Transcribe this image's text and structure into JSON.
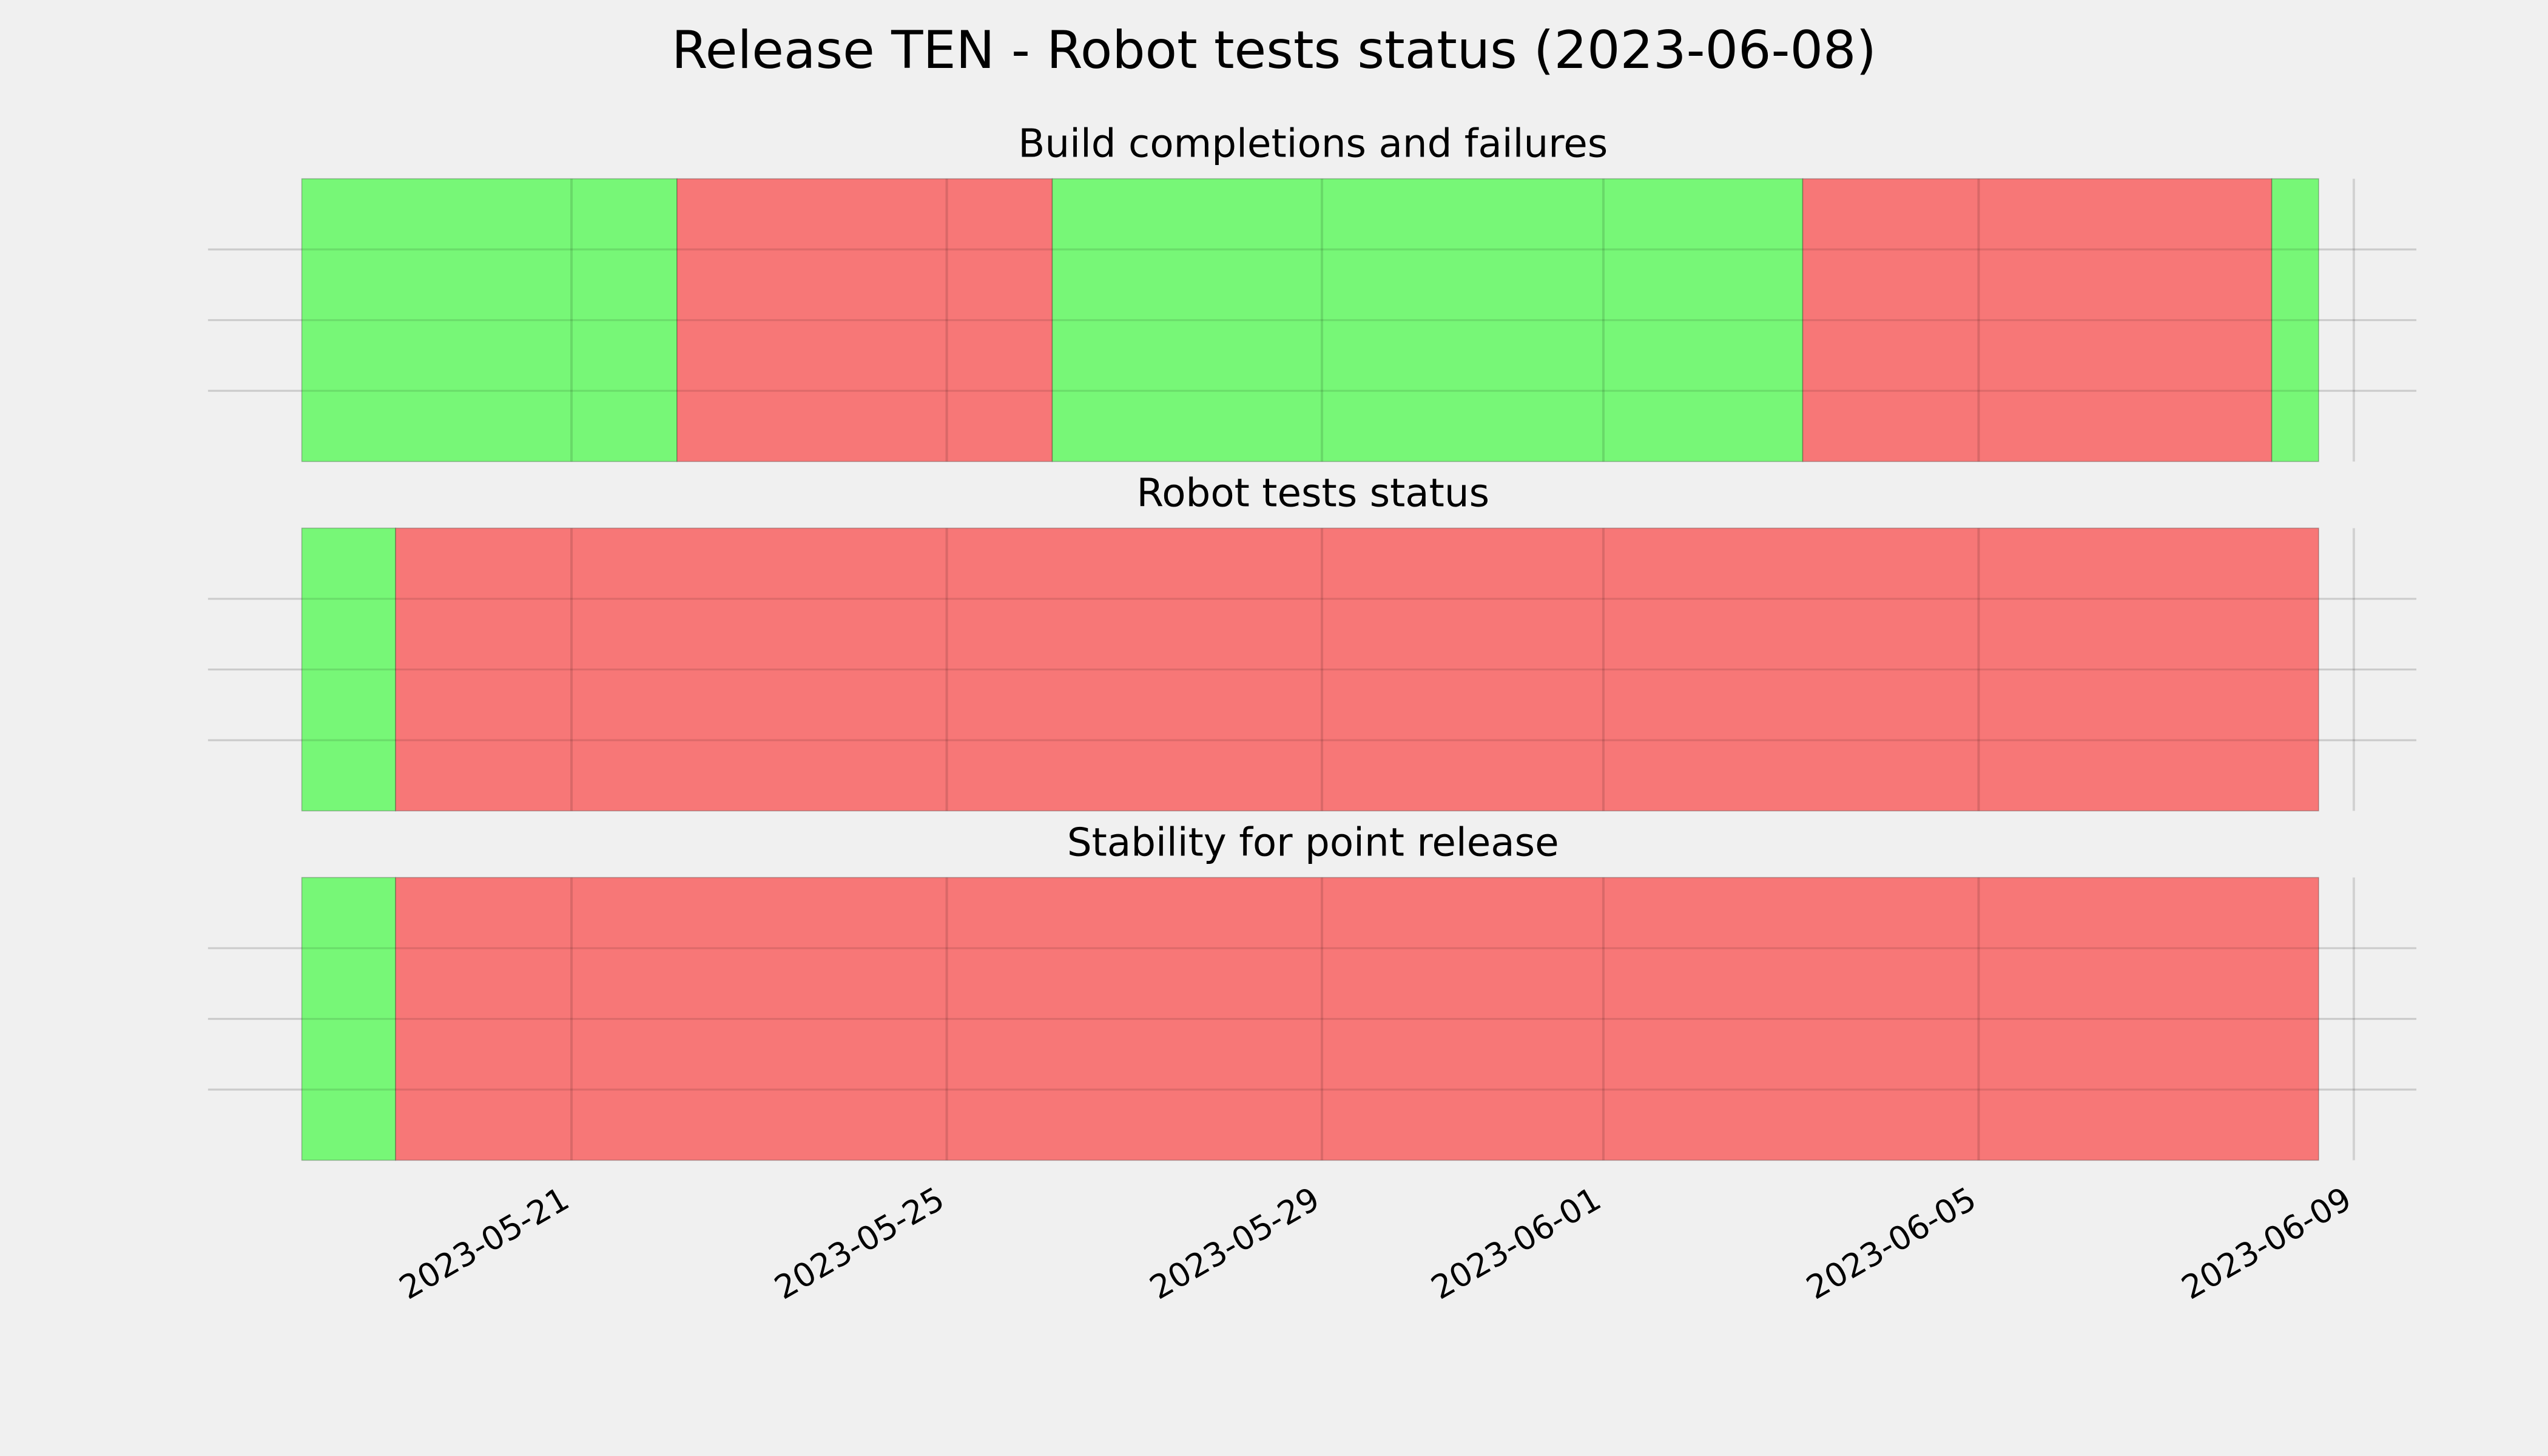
{
  "title": "Release TEN - Robot tests status (2023-06-08)",
  "chart_data": [
    {
      "type": "timeline",
      "title": "Build completions and failures",
      "x": [
        "2023-05-18T03:00",
        "2023-05-22T03:00",
        "2023-05-26T03:00",
        "2023-06-03T03:00",
        "2023-06-08T03:00",
        "2023-06-08T15:00"
      ],
      "colors": [
        "#77f777",
        "#f77777",
        "#77f777",
        "#f77777",
        "#77f777"
      ],
      "ylim": [
        0,
        1
      ],
      "ygrid": [
        0.25,
        0.5,
        0.75
      ]
    },
    {
      "type": "timeline",
      "title": "Robot tests status",
      "x": [
        "2023-05-18T03:00",
        "2023-05-19T03:00",
        "2023-06-08T15:00"
      ],
      "colors": [
        "#77f777",
        "#f77777"
      ],
      "ylim": [
        0,
        1
      ],
      "ygrid": [
        0.25,
        0.5,
        0.75
      ]
    },
    {
      "type": "timeline",
      "title": "Stability for point release",
      "x": [
        "2023-05-18T03:00",
        "2023-05-19T03:00",
        "2023-06-08T15:00"
      ],
      "colors": [
        "#77f777",
        "#f77777"
      ],
      "ylim": [
        0,
        1
      ],
      "ygrid": [
        0.25,
        0.5,
        0.75
      ],
      "xlim": [
        "2023-05-17T03:00",
        "2023-06-09T16:00"
      ],
      "xticks": [
        "2023-05-21",
        "2023-05-25",
        "2023-05-29",
        "2023-06-01",
        "2023-06-05",
        "2023-06-09"
      ]
    }
  ]
}
